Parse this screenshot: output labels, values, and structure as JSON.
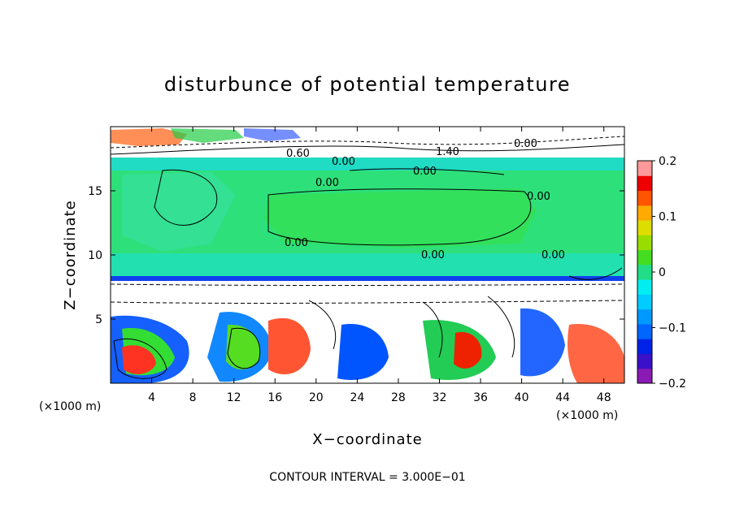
{
  "chart_data": {
    "type": "heatmap",
    "title": "disturbunce of potential temperature",
    "xlabel": "X−coordinate",
    "ylabel": "Z−coordinate",
    "x_unit_label": "(×1000 m)",
    "y_unit_label": "(×1000 m)",
    "xlim": [
      0,
      50
    ],
    "ylim": [
      0,
      20
    ],
    "x_ticks": [
      4,
      8,
      12,
      16,
      20,
      24,
      28,
      32,
      36,
      40,
      44,
      48
    ],
    "y_ticks": [
      5,
      10,
      15
    ],
    "colorbar": {
      "range": [
        -0.2,
        0.2
      ],
      "tick_labels": [
        "0.2",
        "0.1",
        "0",
        "−0.1",
        "−0.2"
      ],
      "tick_values": [
        0.2,
        0.1,
        0,
        -0.1,
        -0.2
      ],
      "colors": [
        "#8a1ab4",
        "#3a10c8",
        "#0022e6",
        "#0066ff",
        "#0099ff",
        "#00ccff",
        "#00eef0",
        "#22dd88",
        "#44dd22",
        "#99dd00",
        "#dddd00",
        "#ffaa00",
        "#ff5500",
        "#ee0000",
        "#ff9999"
      ]
    },
    "contour_labels": [
      "0.60",
      "0.00",
      "0.00",
      "0.00",
      "1.40",
      "0.00",
      "0.00",
      "0.00",
      "0.00",
      "0.00"
    ],
    "footer": "CONTOUR INTERVAL = 3.000E−01"
  }
}
